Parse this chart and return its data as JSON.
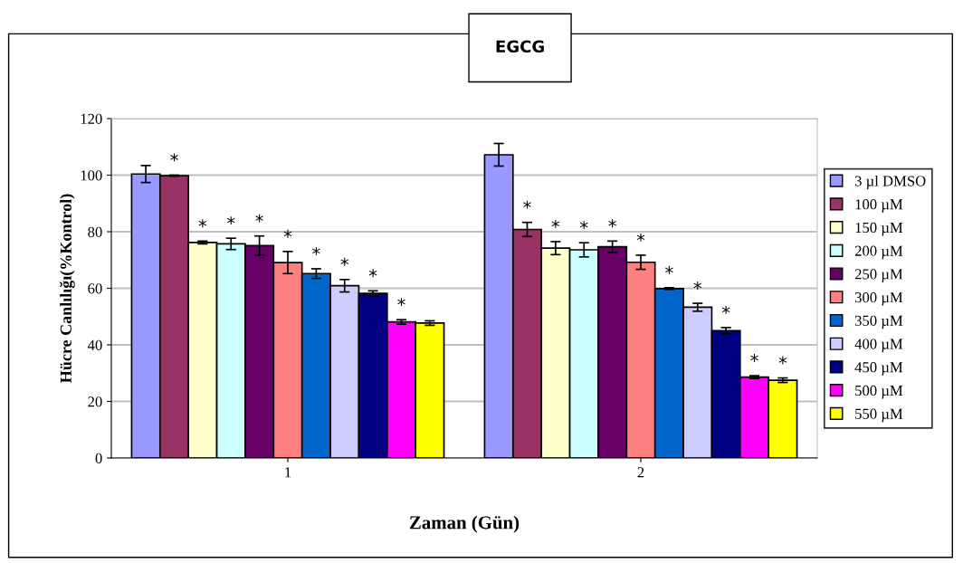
{
  "chart_data": {
    "type": "bar",
    "title": "EGCG",
    "xlabel": "Zaman (Gün)",
    "ylabel": "Hücre Canlılığı(%Kontrol)",
    "categories": [
      "1",
      "2"
    ],
    "series": [
      {
        "name": "3 µl DMSO",
        "color": "#9999ff",
        "values": [
          100.4,
          107.2
        ],
        "errors": [
          3,
          4
        ]
      },
      {
        "name": "100 µM",
        "color": "#993366",
        "values": [
          99.8,
          80.8
        ],
        "errors": [
          0.2,
          2.5
        ],
        "value_labels": [
          "*",
          "*"
        ]
      },
      {
        "name": "150 µM",
        "color": "#ffffcc",
        "values": [
          76.2,
          74.2
        ],
        "errors": [
          0.5,
          2.3
        ],
        "value_labels": [
          "*",
          "*"
        ]
      },
      {
        "name": "200 µM",
        "color": "#ccffff",
        "values": [
          75.7,
          73.6
        ],
        "errors": [
          2,
          2.5
        ],
        "value_labels": [
          "*",
          "*"
        ]
      },
      {
        "name": "250 µM",
        "color": "#660066",
        "values": [
          75.1,
          74.7
        ],
        "errors": [
          3.4,
          2
        ],
        "value_labels": [
          "*",
          "*"
        ]
      },
      {
        "name": "300 µM",
        "color": "#ff8080",
        "values": [
          69.1,
          69.2
        ],
        "errors": [
          3.9,
          2.5
        ],
        "value_labels": [
          "*",
          "*"
        ]
      },
      {
        "name": "350 µM",
        "color": "#0066cc",
        "values": [
          65.2,
          59.9
        ],
        "errors": [
          1.7,
          0.3
        ],
        "value_labels": [
          "*",
          "*"
        ]
      },
      {
        "name": "400 µM",
        "color": "#ccccff",
        "values": [
          60.9,
          53.3
        ],
        "errors": [
          2.2,
          1.4
        ],
        "value_labels": [
          "*",
          "*"
        ]
      },
      {
        "name": "450 µM",
        "color": "#000080",
        "values": [
          58.2,
          45.0
        ],
        "errors": [
          0.9,
          1.1
        ],
        "value_labels": [
          "*",
          "*"
        ]
      },
      {
        "name": "500 µM",
        "color": "#ff00ff",
        "values": [
          48.1,
          28.6
        ],
        "errors": [
          0.8,
          0.5
        ],
        "value_labels": [
          "*",
          "*"
        ]
      },
      {
        "name": "550 µM",
        "color": "#ffff00",
        "values": [
          47.7,
          27.5
        ],
        "errors": [
          0.8,
          0.8
        ],
        "value_labels": [
          null,
          "*"
        ]
      }
    ],
    "ylim": [
      0,
      120
    ],
    "yticks": [
      0,
      20,
      40,
      60,
      80,
      100,
      120
    ],
    "grid": "y",
    "legend": "right"
  }
}
